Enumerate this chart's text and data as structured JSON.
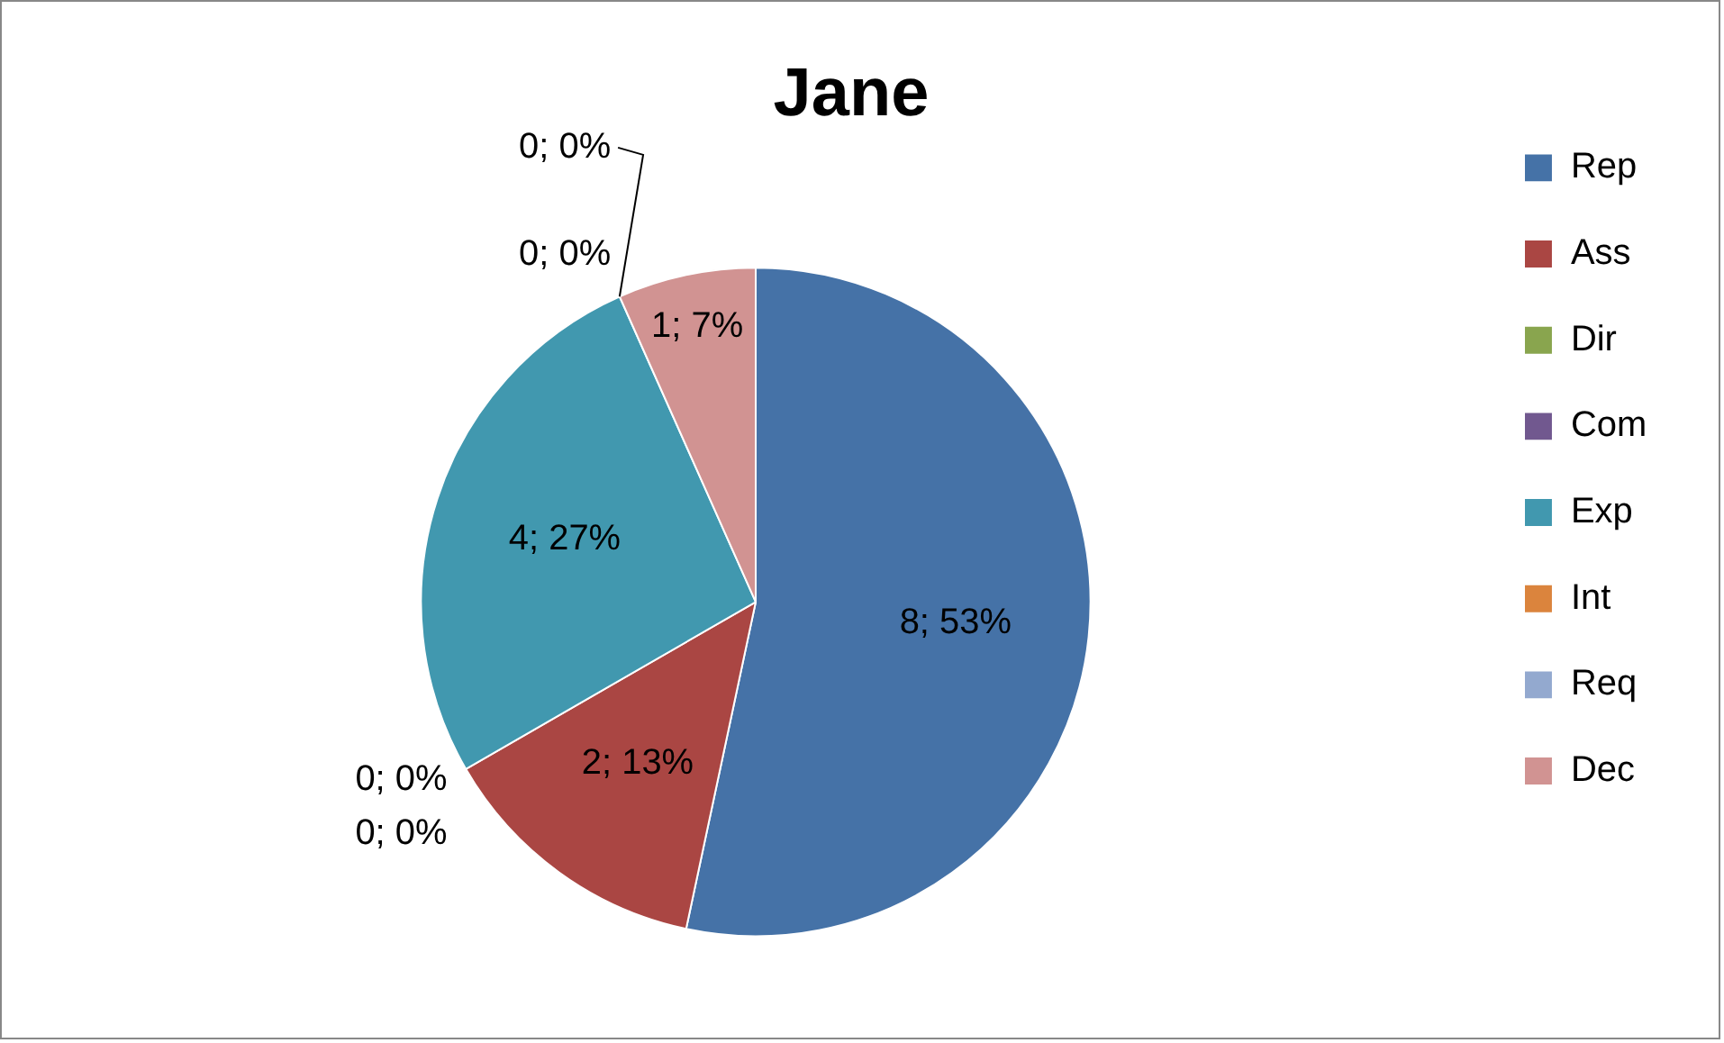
{
  "chart_data": {
    "type": "pie",
    "title": "Jane",
    "legend": "right",
    "categories": [
      "Rep",
      "Ass",
      "Dir",
      "Com",
      "Exp",
      "Int",
      "Req",
      "Dec"
    ],
    "values": [
      8,
      2,
      0,
      0,
      4,
      0,
      0,
      1
    ],
    "colors": [
      "#4572a7",
      "#aa4643",
      "#89a54e",
      "#71588f",
      "#4198af",
      "#db843d",
      "#93a9cf",
      "#d19392"
    ],
    "value_labels": [
      "8; 53%",
      "2; 13%",
      "0; 0%",
      "0; 0%",
      "4; 27%",
      "0; 0%",
      "0; 0%",
      "1; 7%"
    ]
  }
}
